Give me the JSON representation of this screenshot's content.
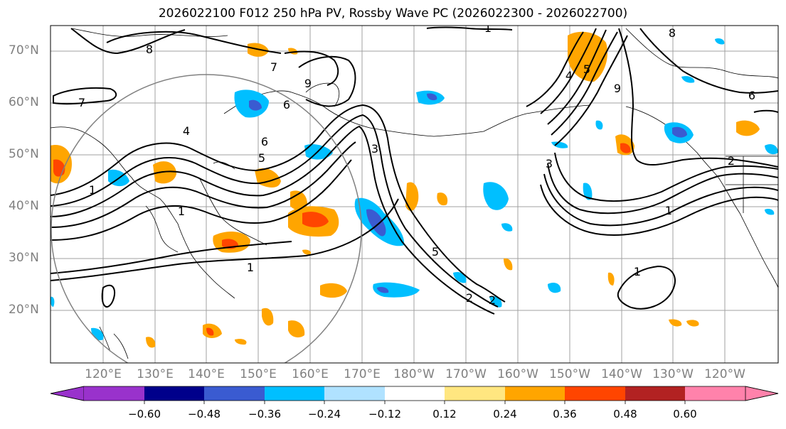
{
  "title": "2026022100 F012 250 hPa PV, Rossby Wave PC (2026022300 - 2026022700)",
  "lat_labels": [
    "70°N",
    "60°N",
    "50°N",
    "40°N",
    "30°N",
    "20°N"
  ],
  "lon_labels": [
    "120°E",
    "130°E",
    "140°E",
    "150°E",
    "160°E",
    "170°E",
    "180°W",
    "170°W",
    "160°W",
    "150°W",
    "140°W",
    "130°W",
    "120°W"
  ],
  "colorbar": {
    "ticks": [
      "−0.60",
      "−0.48",
      "−0.36",
      "−0.24",
      "−0.12",
      "0.12",
      "0.24",
      "0.36",
      "0.48",
      "0.60"
    ],
    "colors": [
      "#9932cc",
      "#00008b",
      "#3a5bd1",
      "#00bfff",
      "#b0e2ff",
      "#ffffff",
      "#ffe680",
      "#ffa500",
      "#ff4500",
      "#b22222",
      "#ff82ab"
    ]
  },
  "contour_labels": [
    "7",
    "8",
    "1",
    "9",
    "6",
    "5",
    "4",
    "3",
    "2",
    "1",
    "7",
    "6",
    "5",
    "4",
    "1",
    "9",
    "8",
    "6",
    "2",
    "3",
    "5",
    "1",
    "1",
    "2",
    "1"
  ]
}
